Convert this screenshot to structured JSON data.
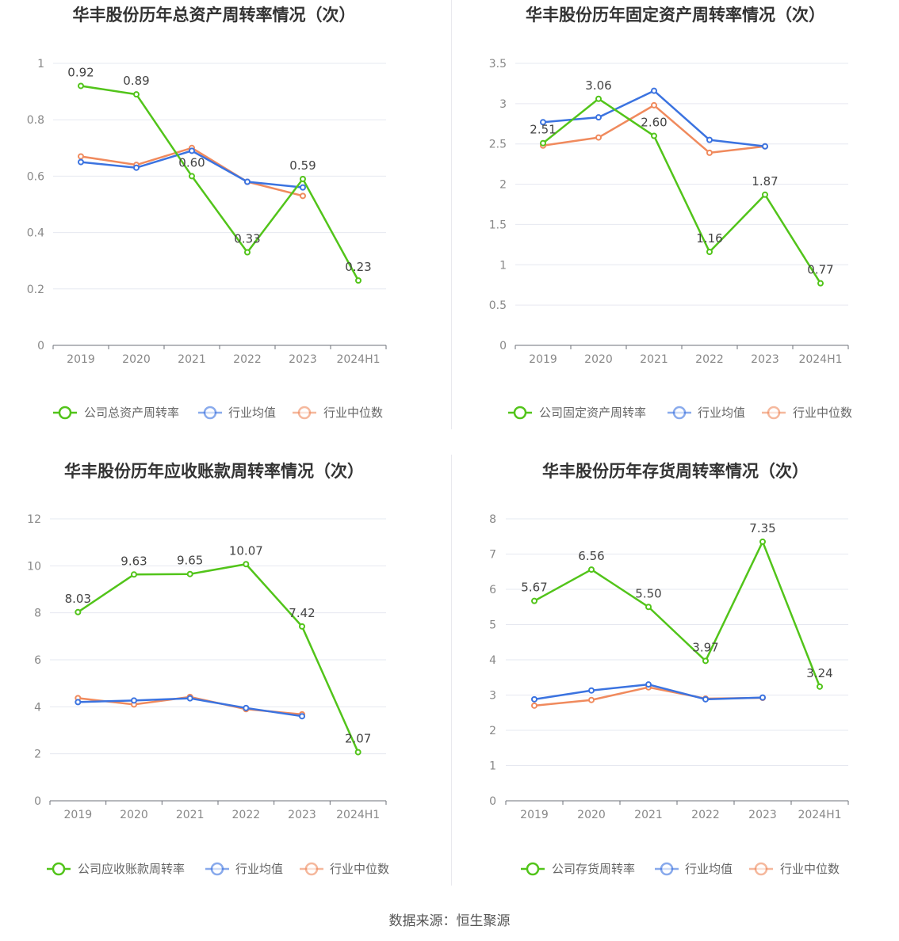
{
  "source_text": "数据来源：恒生聚源",
  "colors": {
    "company": "#52c41a",
    "avg": "#3b73e0",
    "median": "#f08a5d",
    "grid": "#e6e8f0",
    "axis": "#888888",
    "title": "#333333"
  },
  "chart_data": [
    {
      "type": "line",
      "title": "华丰股份历年总资产周转率情况（次）",
      "categories": [
        "2019",
        "2020",
        "2021",
        "2022",
        "2023",
        "2024H1"
      ],
      "ylim": [
        0,
        1
      ],
      "yticks": [
        0,
        0.2,
        0.4,
        0.6,
        0.8,
        1
      ],
      "ytick_labels": [
        "0",
        "0.2",
        "0.4",
        "0.6",
        "0.8",
        "1"
      ],
      "series": [
        {
          "name": "公司总资产周转率",
          "values": [
            0.92,
            0.89,
            0.6,
            0.33,
            0.59,
            0.23
          ],
          "labels": [
            "0.92",
            "0.89",
            "0.60",
            "0.33",
            "0.59",
            "0.23"
          ]
        },
        {
          "name": "行业均值",
          "values": [
            0.65,
            0.63,
            0.69,
            0.58,
            0.56,
            null
          ]
        },
        {
          "name": "行业中位数",
          "values": [
            0.67,
            0.64,
            0.7,
            0.58,
            0.53,
            null
          ]
        }
      ]
    },
    {
      "type": "line",
      "title": "华丰股份历年固定资产周转率情况（次）",
      "categories": [
        "2019",
        "2020",
        "2021",
        "2022",
        "2023",
        "2024H1"
      ],
      "ylim": [
        0,
        3.5
      ],
      "yticks": [
        0,
        0.5,
        1,
        1.5,
        2,
        2.5,
        3,
        3.5
      ],
      "ytick_labels": [
        "0",
        "0.5",
        "1",
        "1.5",
        "2",
        "2.5",
        "3",
        "3.5"
      ],
      "series": [
        {
          "name": "公司固定资产周转率",
          "values": [
            2.51,
            3.06,
            2.6,
            1.16,
            1.87,
            0.77
          ],
          "labels": [
            "2.51",
            "3.06",
            "2.60",
            "1.16",
            "1.87",
            "0.77"
          ]
        },
        {
          "name": "行业均值",
          "values": [
            2.77,
            2.83,
            3.16,
            2.55,
            2.47,
            null
          ]
        },
        {
          "name": "行业中位数",
          "values": [
            2.48,
            2.58,
            2.98,
            2.39,
            2.47,
            null
          ]
        }
      ]
    },
    {
      "type": "line",
      "title": "华丰股份历年应收账款周转率情况（次）",
      "categories": [
        "2019",
        "2020",
        "2021",
        "2022",
        "2023",
        "2024H1"
      ],
      "ylim": [
        0,
        12
      ],
      "yticks": [
        0,
        2,
        4,
        6,
        8,
        10,
        12
      ],
      "ytick_labels": [
        "0",
        "2",
        "4",
        "6",
        "8",
        "10",
        "12"
      ],
      "series": [
        {
          "name": "公司应收账款周转率",
          "values": [
            8.03,
            9.63,
            9.65,
            10.07,
            7.42,
            2.07
          ],
          "labels": [
            "8.03",
            "9.63",
            "9.65",
            "10.07",
            "7.42",
            "2.07"
          ]
        },
        {
          "name": "行业均值",
          "values": [
            4.2,
            4.27,
            4.36,
            3.95,
            3.6,
            null
          ]
        },
        {
          "name": "行业中位数",
          "values": [
            4.37,
            4.1,
            4.42,
            3.9,
            3.68,
            null
          ]
        }
      ]
    },
    {
      "type": "line",
      "title": "华丰股份历年存货周转率情况（次）",
      "categories": [
        "2019",
        "2020",
        "2021",
        "2022",
        "2023",
        "2024H1"
      ],
      "ylim": [
        0,
        8
      ],
      "yticks": [
        0,
        1,
        2,
        3,
        4,
        5,
        6,
        7,
        8
      ],
      "ytick_labels": [
        "0",
        "1",
        "2",
        "3",
        "4",
        "5",
        "6",
        "7",
        "8"
      ],
      "series": [
        {
          "name": "公司存货周转率",
          "values": [
            5.67,
            6.56,
            5.5,
            3.97,
            7.35,
            3.24
          ],
          "labels": [
            "5.67",
            "6.56",
            "5.50",
            "3.97",
            "7.35",
            "3.24"
          ]
        },
        {
          "name": "行业均值",
          "values": [
            2.88,
            3.13,
            3.3,
            2.88,
            2.93,
            null
          ]
        },
        {
          "name": "行业中位数",
          "values": [
            2.7,
            2.86,
            3.22,
            2.9,
            2.92,
            null
          ]
        }
      ]
    }
  ]
}
